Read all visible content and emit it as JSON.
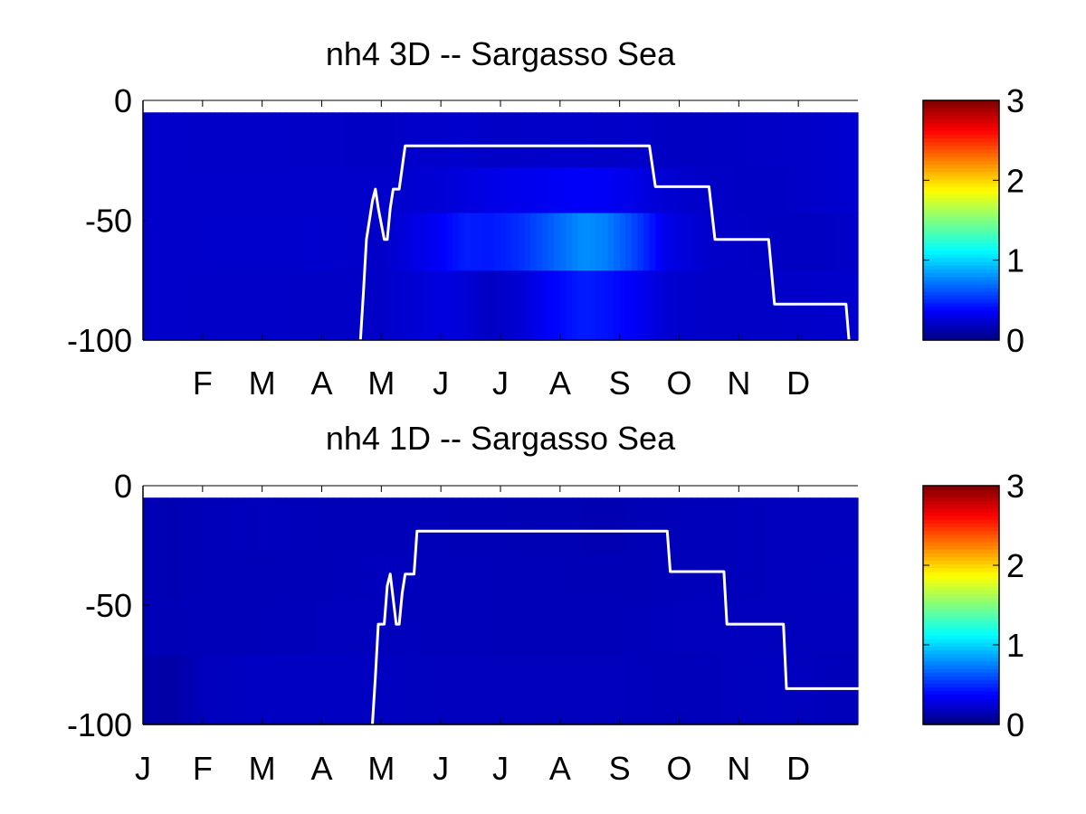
{
  "colors": {
    "background": "#ffffff",
    "mld_line": "#ffffff",
    "colormap": "jet"
  },
  "chart_data": [
    {
      "type": "heatmap",
      "title": "nh4 3D   -- Sargasso Sea",
      "xlabel": "",
      "ylabel": "",
      "ylim": [
        -100,
        0
      ],
      "yticks": [
        0,
        -50,
        -100
      ],
      "month_labels": [
        "F",
        "M",
        "A",
        "M",
        "J",
        "J",
        "A",
        "S",
        "O",
        "N",
        "D"
      ],
      "colorbar": {
        "ticks": [
          3,
          2,
          1,
          0
        ],
        "range": [
          0,
          3
        ]
      },
      "depth_layer_edges": [
        -5,
        -28,
        -47,
        -71,
        -100
      ],
      "value_profile": [
        [
          0,
          [
            0.22,
            0.22,
            0.22,
            0.22
          ]
        ],
        [
          3,
          [
            0.21,
            0.22,
            0.23,
            0.21
          ]
        ],
        [
          4,
          [
            0.2,
            0.22,
            0.21,
            0.21
          ]
        ],
        [
          4.6,
          [
            0.22,
            0.24,
            0.3,
            0.25
          ]
        ],
        [
          5,
          [
            0.22,
            0.25,
            0.36,
            0.28
          ]
        ],
        [
          5.4,
          [
            0.23,
            0.28,
            0.46,
            0.26
          ]
        ],
        [
          5.8,
          [
            0.21,
            0.3,
            0.44,
            0.2
          ]
        ],
        [
          6.3,
          [
            0.21,
            0.32,
            0.5,
            0.24
          ]
        ],
        [
          6.9,
          [
            0.22,
            0.34,
            0.66,
            0.38
          ]
        ],
        [
          7.4,
          [
            0.22,
            0.36,
            0.8,
            0.46
          ]
        ],
        [
          7.8,
          [
            0.21,
            0.34,
            0.74,
            0.42
          ]
        ],
        [
          8.2,
          [
            0.22,
            0.31,
            0.6,
            0.36
          ]
        ],
        [
          8.8,
          [
            0.2,
            0.24,
            0.3,
            0.24
          ]
        ],
        [
          9.5,
          [
            0.2,
            0.21,
            0.22,
            0.21
          ]
        ],
        [
          10.5,
          [
            0.21,
            0.2,
            0.2,
            0.21
          ]
        ],
        [
          11.4,
          [
            0.22,
            0.22,
            0.2,
            0.22
          ]
        ],
        [
          12,
          [
            0.24,
            0.24,
            0.22,
            0.23
          ]
        ]
      ],
      "mld_x": [
        3.65,
        3.7,
        3.75,
        3.85,
        3.9,
        3.95,
        4.05,
        4.1,
        4.15,
        4.2,
        4.3,
        4.4,
        8.5,
        8.6,
        9.5,
        9.6,
        10.5,
        10.6,
        11.8,
        11.85
      ],
      "mld_y": [
        -100,
        -80,
        -58,
        -42,
        -37,
        -45,
        -58,
        -58,
        -45,
        -37,
        -37,
        -19,
        -19,
        -36,
        -36,
        -58,
        -58,
        -85,
        -85,
        -100
      ]
    },
    {
      "type": "heatmap",
      "title": "nh4 1D   -- Sargasso Sea",
      "xlabel": "",
      "ylabel": "",
      "ylim": [
        -100,
        0
      ],
      "yticks": [
        0,
        -50,
        -100
      ],
      "month_labels": [
        "J",
        "F",
        "M",
        "A",
        "M",
        "J",
        "J",
        "A",
        "S",
        "O",
        "N",
        "D"
      ],
      "colorbar": {
        "ticks": [
          3,
          2,
          1,
          0
        ],
        "range": [
          0,
          3
        ]
      },
      "depth_layer_edges": [
        -5,
        -28,
        -47,
        -71,
        -100
      ],
      "value_profile": [
        [
          0,
          [
            0.16,
            0.16,
            0.17,
            0.13
          ]
        ],
        [
          0.5,
          [
            0.15,
            0.15,
            0.16,
            0.11
          ]
        ],
        [
          1,
          [
            0.17,
            0.17,
            0.17,
            0.18
          ]
        ],
        [
          2,
          [
            0.18,
            0.17,
            0.17,
            0.2
          ]
        ],
        [
          3,
          [
            0.17,
            0.17,
            0.18,
            0.2
          ]
        ],
        [
          4,
          [
            0.17,
            0.18,
            0.18,
            0.19
          ]
        ],
        [
          6,
          [
            0.16,
            0.17,
            0.17,
            0.18
          ]
        ],
        [
          8,
          [
            0.15,
            0.16,
            0.17,
            0.18
          ]
        ],
        [
          9,
          [
            0.17,
            0.17,
            0.18,
            0.17
          ]
        ],
        [
          10.5,
          [
            0.18,
            0.18,
            0.18,
            0.19
          ]
        ],
        [
          12,
          [
            0.18,
            0.19,
            0.18,
            0.17
          ]
        ]
      ],
      "mld_x": [
        3.85,
        3.9,
        3.95,
        4.05,
        4.1,
        4.15,
        4.25,
        4.3,
        4.35,
        4.4,
        4.55,
        4.6,
        8.8,
        8.85,
        9.75,
        9.8,
        10.75,
        10.8,
        12.2,
        12.25
      ],
      "mld_y": [
        -100,
        -80,
        -58,
        -58,
        -42,
        -37,
        -58,
        -58,
        -45,
        -37,
        -37,
        -19,
        -19,
        -36,
        -36,
        -58,
        -58,
        -85,
        -85,
        -100
      ]
    }
  ]
}
